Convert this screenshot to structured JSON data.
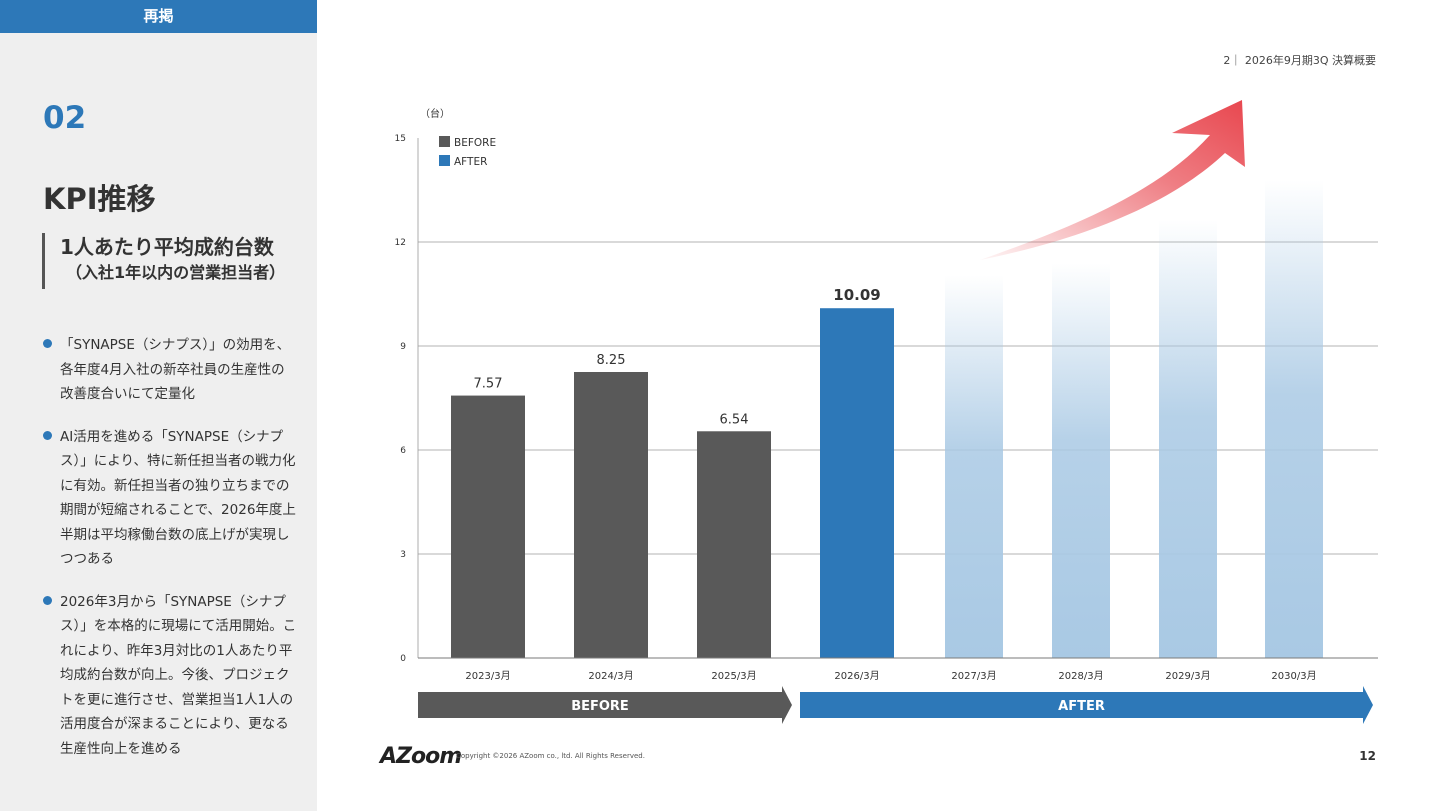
{
  "sidebar": {
    "tag": "再掲",
    "section_number": "02",
    "section_title": "KPI推移",
    "kpi_title": "1人あたり平均成約台数",
    "kpi_subtitle": "（入社1年以内の営業担当者）",
    "bullets": [
      "「SYNAPSE（シナプス）」の効用を、各年度4月入社の新卒社員の生産性の改善度合いにて定量化",
      "AI活用を進める「SYNAPSE（シナプス）」により、特に新任担当者の戦力化に有効。新任担当者の独り立ちまでの期間が短縮されることで、2026年度上半期は平均稼働台数の底上げが実現しつつある",
      "2026年3月から「SYNAPSE（シナプス）」を本格的に現場にて活用開始。これにより、昨年3月対比の1人あたり平均成約台数が向上。今後、プロジェクトを更に進行させ、営業担当1人1人の活用度合が深まることにより、更なる生産性向上を進める"
    ]
  },
  "header": {
    "text": "2｜ 2026年9月期3Q 決算概要"
  },
  "chart_data": {
    "type": "bar",
    "unit_label": "（台）",
    "categories": [
      "2023/3月",
      "2024/3月",
      "2025/3月",
      "2026/3月",
      "2027/3月",
      "2028/3月",
      "2029/3月",
      "2030/3月"
    ],
    "values": [
      7.57,
      8.25,
      6.54,
      10.09,
      null,
      null,
      null,
      null
    ],
    "value_labels": [
      "7.57",
      "8.25",
      "6.54",
      "10.09",
      "",
      "",
      "",
      ""
    ],
    "groups": [
      "before",
      "before",
      "before",
      "after",
      "future",
      "future",
      "future",
      "future"
    ],
    "yticks": [
      0,
      3,
      6,
      9,
      12,
      15
    ],
    "ylim": [
      0,
      15
    ],
    "legend": [
      {
        "name": "BEFORE",
        "color": "#595959"
      },
      {
        "name": "AFTER",
        "color": "#2d78b8"
      }
    ],
    "legend_position": "top-left",
    "grid": true,
    "phase_arrows": [
      {
        "label": "BEFORE",
        "color": "#595959"
      },
      {
        "label": "AFTER",
        "color": "#2d78b8"
      }
    ],
    "colors": {
      "before": "#595959",
      "after": "#2d78b8",
      "future": "#a9c9e4",
      "growth_arrow": "#e8474f"
    }
  },
  "footer": {
    "logo": "AZoom",
    "copyright": "Copyright ©2026 AZoom co., ltd. All Rights Reserved.",
    "page_number": "12"
  }
}
